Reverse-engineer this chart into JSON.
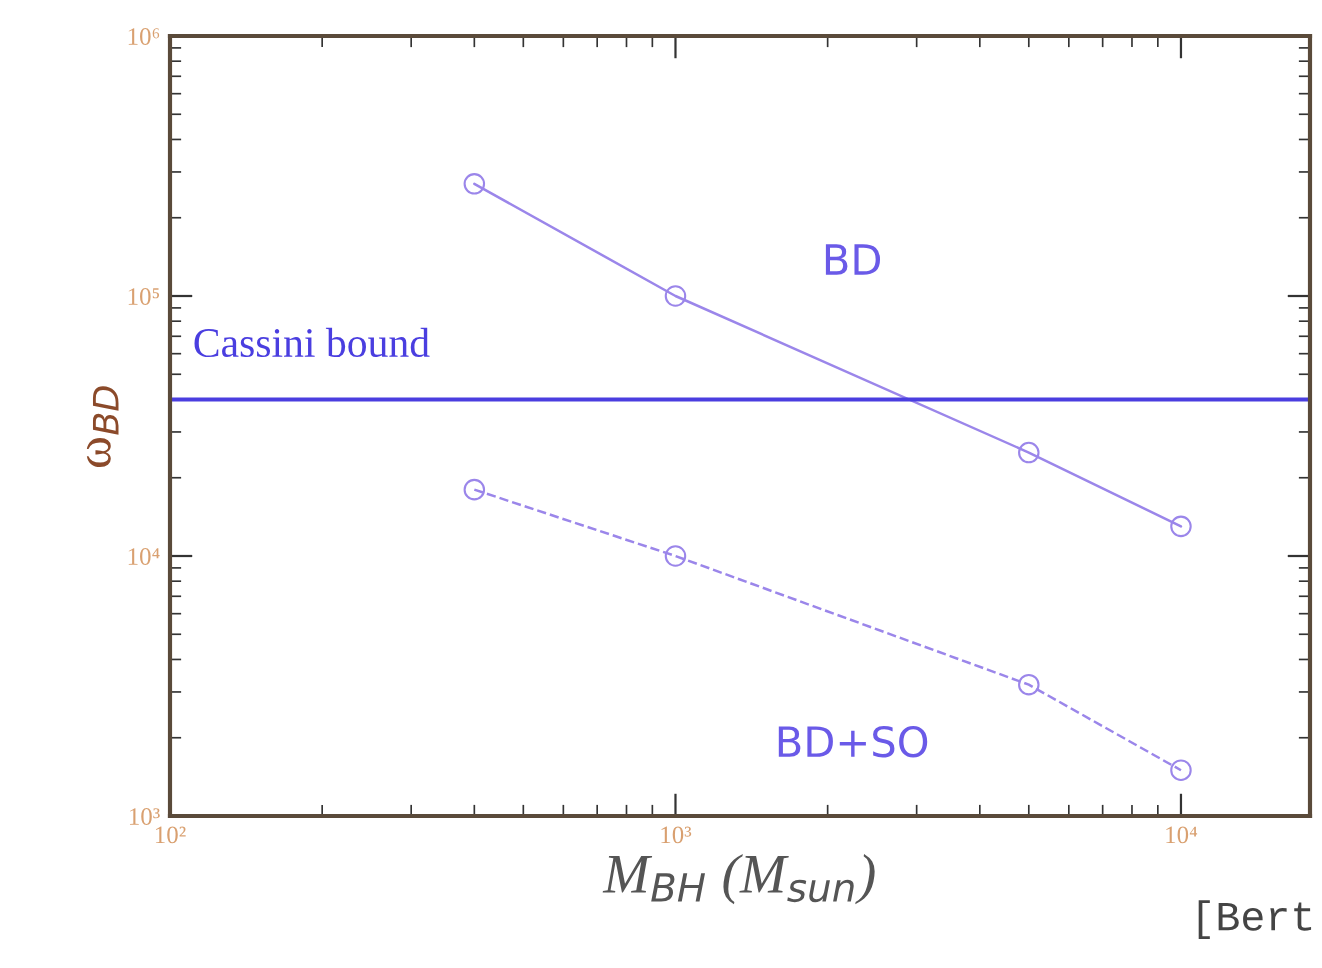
{
  "chart_data": {
    "type": "line",
    "xlabel": "M$_{BH}$ (M$_{sun}$)",
    "ylabel": "ω$_{BD}$",
    "x": [
      400,
      1000,
      5000,
      10000
    ],
    "series": [
      {
        "name": "BD",
        "color": "#9b86ea",
        "values": [
          270000,
          100000,
          25000,
          13000
        ],
        "line_style": "solid"
      },
      {
        "name": "BD+SO",
        "color": "#9b86ea",
        "values": [
          18000,
          10000,
          3200,
          1500
        ],
        "line_style": "dashed"
      }
    ],
    "marker": "circle",
    "log": "xy",
    "grid": false,
    "legend": false,
    "xlim": [
      100,
      18000
    ],
    "xticks": [
      {
        "value": 100,
        "label": "10²"
      },
      {
        "value": 1000,
        "label": "10³"
      },
      {
        "value": 10000,
        "label": "10⁴"
      }
    ],
    "ylim": [
      1000,
      1000000
    ],
    "yticks": [
      {
        "value": 1000,
        "label": "10³"
      },
      {
        "value": 10000,
        "label": "10⁴"
      },
      {
        "value": 100000,
        "label": "10⁵"
      },
      {
        "value": 1000000,
        "label": "10⁶"
      }
    ],
    "ref_lines": [
      {
        "axis": "y",
        "value": 40000,
        "label": "Cassini bound",
        "color": "#4a3ee0",
        "line_style": "solid"
      }
    ],
    "annotations": [
      "[Bert"
    ]
  }
}
